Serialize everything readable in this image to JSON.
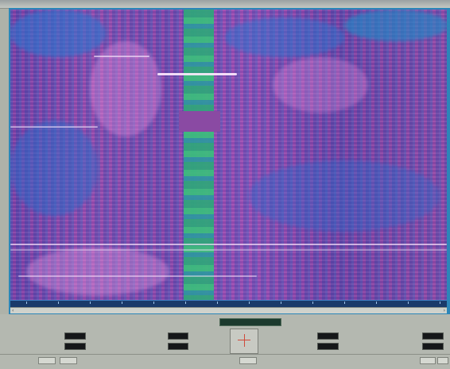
{
  "window": {
    "title": ""
  },
  "display": {
    "type": "spectrogram",
    "status_readout": "",
    "accent_color": "#3bbf7b"
  },
  "left_section": {
    "title": "",
    "field1_label": "",
    "field1_value": "",
    "field2_label": "",
    "field2_value": ""
  },
  "center_section": {
    "field1_label": "",
    "field1_value": "",
    "field2_label": "",
    "field2_value": "",
    "plot_label": ""
  },
  "right_section": {
    "title": "",
    "field1_label": "",
    "field1_value": "",
    "field2_label": "",
    "field2_value": "",
    "field3_label": "",
    "field3_value": "",
    "field4_label": "",
    "field4_value": ""
  },
  "buttons": {
    "b1": "",
    "b2": "",
    "b3": "",
    "b4": "",
    "b5": ""
  },
  "icons": {
    "crosshair": "crosshair-icon",
    "scroll_left": "chevron-left-icon",
    "scroll_right": "chevron-right-icon"
  }
}
